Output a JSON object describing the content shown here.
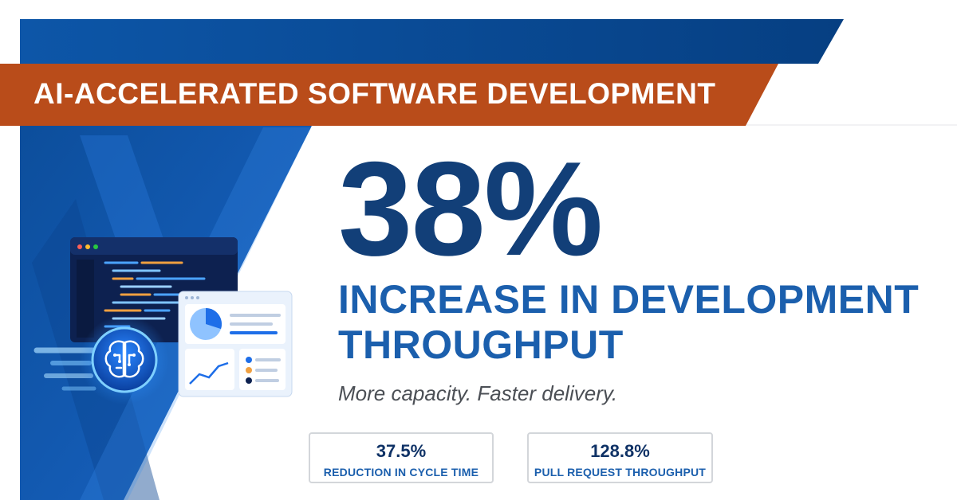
{
  "banner": {
    "title": "AI-ACCELERATED SOFTWARE DEVELOPMENT"
  },
  "headline": {
    "value": "38%",
    "description": "INCREASE IN DEVELOPMENT THROUGHPUT",
    "tagline": "More capacity. Faster delivery."
  },
  "stats": [
    {
      "value": "37.5%",
      "label": "REDUCTION IN CYCLE TIME"
    },
    {
      "value": "128.8%",
      "label": "PULL REQUEST THROUGHPUT"
    }
  ],
  "illustration": {
    "icons": [
      "code-editor-window-icon",
      "dashboard-window-icon",
      "ai-brain-icon",
      "pie-chart-icon",
      "line-chart-icon"
    ],
    "dashboard_pie_share": 0.3
  },
  "colors": {
    "navy": "#0b4a8c",
    "royal_blue": "#1560c0",
    "banner_orange": "#b94c1a",
    "headline_navy": "#123f78",
    "headline_blue": "#1b5fad",
    "text_gray": "#4b4f55",
    "card_border": "#d3d6da"
  }
}
